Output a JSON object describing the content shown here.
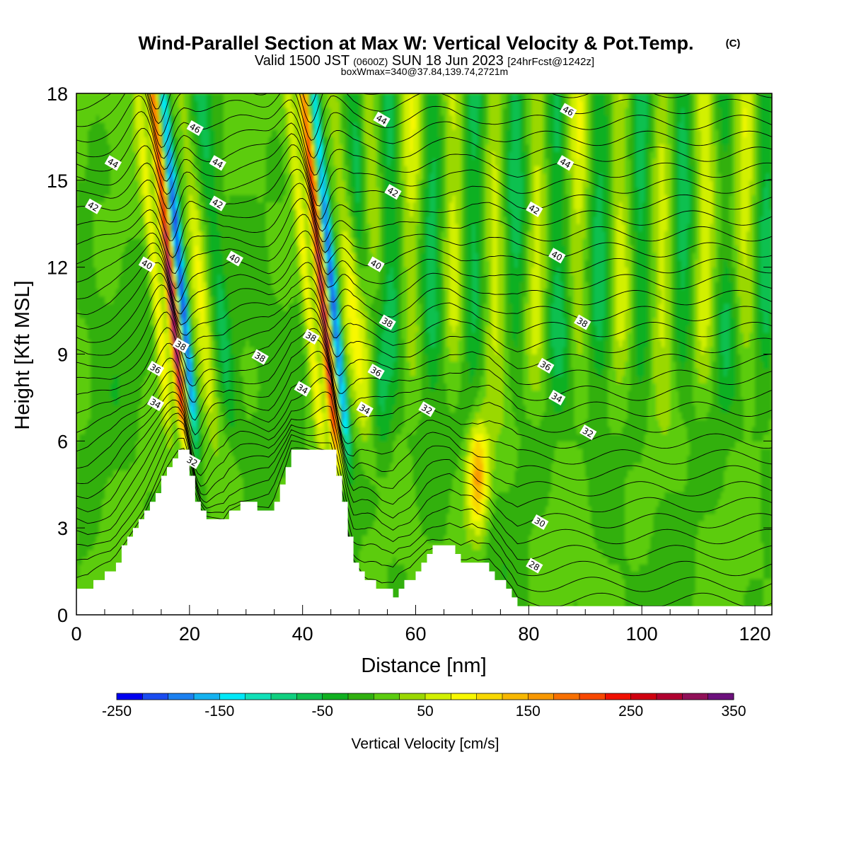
{
  "header": {
    "title": "Wind-Parallel Section at Max W: Vertical Velocity & Pot.Temp.",
    "copyright": "(C)",
    "valid_prefix": "Valid 1500 JST",
    "valid_z": "(0600Z)",
    "valid_date": "SUN 18 Jun 2023",
    "forecast": "[24hrFcst@1242z]",
    "box_info": "boxWmax=340@37.84,139.74,2721m"
  },
  "chart_data": {
    "type": "heatmap",
    "xlabel": "Distance [nm]",
    "ylabel": "Height [Kft MSL]",
    "xlim": [
      0,
      123
    ],
    "ylim": [
      0,
      18
    ],
    "x_ticks": [
      0,
      20,
      40,
      60,
      80,
      100,
      120
    ],
    "x_tick_labels": [
      "0",
      "20",
      "40",
      "60",
      "80",
      "100",
      "120"
    ],
    "y_ticks": [
      0,
      3,
      6,
      9,
      12,
      15,
      18
    ],
    "y_tick_labels": [
      "0",
      "3",
      "6",
      "9",
      "12",
      "15",
      "18"
    ],
    "colorbar": {
      "title": "Vertical Velocity [cm/s]",
      "range": [
        -250,
        350
      ],
      "step": 25,
      "tick_labels": [
        "-250",
        "-150",
        "-50",
        "50",
        "150",
        "250",
        "350"
      ],
      "tick_values": [
        -250,
        -150,
        -50,
        50,
        150,
        250,
        350
      ],
      "colors": [
        "#0000f0",
        "#1a4cf0",
        "#1c80f0",
        "#14b2f0",
        "#00e8f8",
        "#10e0b8",
        "#10d080",
        "#10c050",
        "#10b020",
        "#30b010",
        "#5ccc10",
        "#9ad800",
        "#d2f000",
        "#f8f800",
        "#f8d800",
        "#f8b800",
        "#f89800",
        "#f87000",
        "#f84800",
        "#f01000",
        "#d00010",
        "#b00030",
        "#901058",
        "#6c107c"
      ]
    },
    "terrain_kft": [
      [
        0,
        1.0
      ],
      [
        2,
        1.0
      ],
      [
        4,
        1.3
      ],
      [
        6,
        1.6
      ],
      [
        7,
        1.9
      ],
      [
        8,
        2.3
      ],
      [
        9,
        2.6
      ],
      [
        10,
        2.9
      ],
      [
        11,
        3.2
      ],
      [
        12,
        3.5
      ],
      [
        13,
        3.9
      ],
      [
        14,
        4.3
      ],
      [
        15,
        4.7
      ],
      [
        16,
        5.1
      ],
      [
        17,
        5.4
      ],
      [
        18,
        5.6
      ],
      [
        19,
        5.6
      ],
      [
        20,
        4.9
      ],
      [
        21,
        4.0
      ],
      [
        22,
        3.5
      ],
      [
        23,
        3.3
      ],
      [
        26,
        3.3
      ],
      [
        27,
        3.6
      ],
      [
        29,
        3.8
      ],
      [
        34,
        3.7
      ],
      [
        35,
        4.0
      ],
      [
        36,
        4.5
      ],
      [
        37,
        5.0
      ],
      [
        38,
        5.6
      ],
      [
        45,
        5.6
      ],
      [
        46,
        4.7
      ],
      [
        47,
        3.8
      ],
      [
        48,
        2.8
      ],
      [
        49,
        1.9
      ],
      [
        50,
        1.6
      ],
      [
        51,
        1.3
      ],
      [
        53,
        1.0
      ],
      [
        54,
        0.8
      ],
      [
        56,
        0.7
      ],
      [
        57,
        1.0
      ],
      [
        59,
        1.3
      ],
      [
        60,
        1.6
      ],
      [
        61,
        1.9
      ],
      [
        62,
        2.2
      ],
      [
        63,
        2.3
      ],
      [
        66,
        2.3
      ],
      [
        67,
        2.1
      ],
      [
        68,
        1.9
      ],
      [
        70,
        1.9
      ],
      [
        71,
        1.7
      ],
      [
        73,
        1.6
      ],
      [
        74,
        1.3
      ],
      [
        75,
        1.1
      ],
      [
        76,
        0.8
      ],
      [
        77,
        0.6
      ],
      [
        78,
        0.3
      ],
      [
        123,
        0.3
      ]
    ],
    "updraft_cores": [
      {
        "x": 19.5,
        "z_bottom": 5.4,
        "z_top": 18,
        "w_max": 340,
        "w_min": -250
      },
      {
        "x": 46.5,
        "z_bottom": 4.7,
        "z_top": 18,
        "w_max": 320,
        "w_min": -230
      },
      {
        "x": 71.0,
        "z_bottom": 1.8,
        "z_top": 7.5,
        "w_max": 150,
        "w_min": 0
      }
    ],
    "theta_contour_labels": [
      {
        "value": "46",
        "x": 21,
        "z": 16.8
      },
      {
        "value": "44",
        "x": 25,
        "z": 15.6
      },
      {
        "value": "42",
        "x": 25,
        "z": 14.2
      },
      {
        "value": "40",
        "x": 28,
        "z": 12.3
      },
      {
        "value": "38",
        "x": 18.5,
        "z": 9.3
      },
      {
        "value": "36",
        "x": 14,
        "z": 8.5
      },
      {
        "value": "34",
        "x": 14,
        "z": 7.3
      },
      {
        "value": "32",
        "x": 20.5,
        "z": 5.3
      },
      {
        "value": "44",
        "x": 6.5,
        "z": 15.6
      },
      {
        "value": "42",
        "x": 3,
        "z": 14.1
      },
      {
        "value": "40",
        "x": 12.5,
        "z": 12.1
      },
      {
        "value": "38",
        "x": 32.5,
        "z": 8.9
      },
      {
        "value": "38",
        "x": 41.5,
        "z": 9.6
      },
      {
        "value": "34",
        "x": 40,
        "z": 7.8
      },
      {
        "value": "44",
        "x": 54,
        "z": 17.1
      },
      {
        "value": "42",
        "x": 56,
        "z": 14.6
      },
      {
        "value": "40",
        "x": 53,
        "z": 12.1
      },
      {
        "value": "38",
        "x": 55,
        "z": 10.1
      },
      {
        "value": "36",
        "x": 53,
        "z": 8.4
      },
      {
        "value": "34",
        "x": 51,
        "z": 7.1
      },
      {
        "value": "32",
        "x": 62,
        "z": 7.1
      },
      {
        "value": "46",
        "x": 87,
        "z": 17.4
      },
      {
        "value": "44",
        "x": 86.5,
        "z": 15.6
      },
      {
        "value": "42",
        "x": 81,
        "z": 14.0
      },
      {
        "value": "40",
        "x": 85,
        "z": 12.4
      },
      {
        "value": "38",
        "x": 89.5,
        "z": 10.1
      },
      {
        "value": "36",
        "x": 83,
        "z": 8.6
      },
      {
        "value": "34",
        "x": 85,
        "z": 7.5
      },
      {
        "value": "32",
        "x": 90.5,
        "z": 6.3
      },
      {
        "value": "30",
        "x": 82,
        "z": 3.2
      },
      {
        "value": "28",
        "x": 81,
        "z": 1.7
      }
    ]
  }
}
